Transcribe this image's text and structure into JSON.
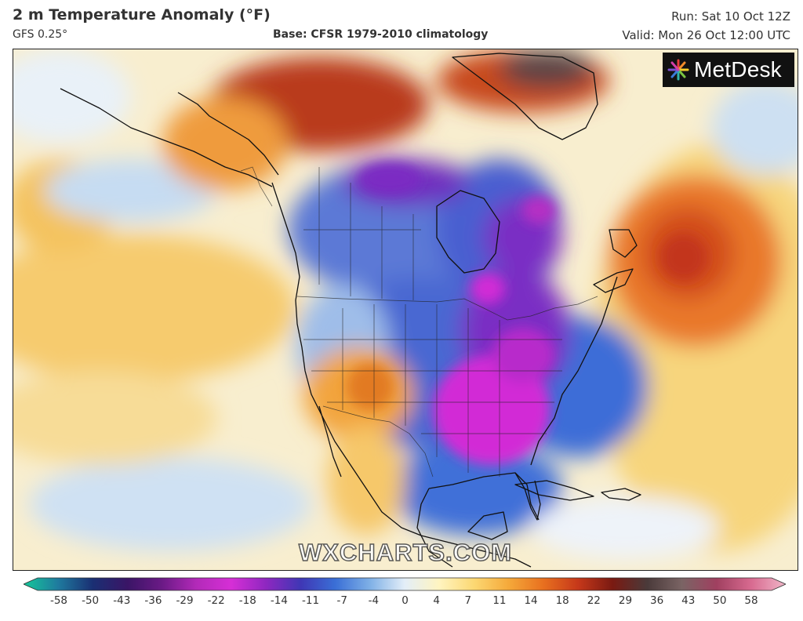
{
  "header": {
    "title": "2 m Temperature Anomaly (°F)",
    "model": "GFS 0.25°",
    "base": "Base: CFSR 1979-2010 climatology",
    "run": "Run: Sat 10 Oct 12Z",
    "valid": "Valid: Mon 26 Oct 12:00 UTC"
  },
  "logo": {
    "text": "MetDesk",
    "icon": "metdesk-burst-icon"
  },
  "watermark": "WXCHARTS.COM",
  "colorbar": {
    "ticks": [
      "-58",
      "-50",
      "-43",
      "-36",
      "-29",
      "-22",
      "-18",
      "-14",
      "-11",
      "-7",
      "-4",
      "0",
      "4",
      "7",
      "11",
      "14",
      "18",
      "22",
      "29",
      "36",
      "43",
      "50",
      "58"
    ],
    "colors": [
      "#15c89a",
      "#1f7a9e",
      "#1a2f73",
      "#3a1566",
      "#6b1a86",
      "#b32ab9",
      "#d62fd6",
      "#8e27c0",
      "#3f37b5",
      "#3a6fd6",
      "#7fb0e6",
      "#e3eef8",
      "#fff4c0",
      "#fcd873",
      "#f5a93a",
      "#e8701f",
      "#c6381a",
      "#7a1a12",
      "#4a3a3a",
      "#7a6464",
      "#a04060",
      "#d86a90",
      "#f0b6c8"
    ]
  },
  "colors": {
    "cold_extreme": "#d22bd6",
    "cold_strong": "#7b2fc4",
    "cold": "#3858cc",
    "cool": "#a8c8ee",
    "neutral": "#f2f6fb",
    "warm": "#fbe28e",
    "warm_strong": "#f2a13b",
    "hot": "#d84a1a",
    "hot_extreme": "#7a1b12"
  }
}
